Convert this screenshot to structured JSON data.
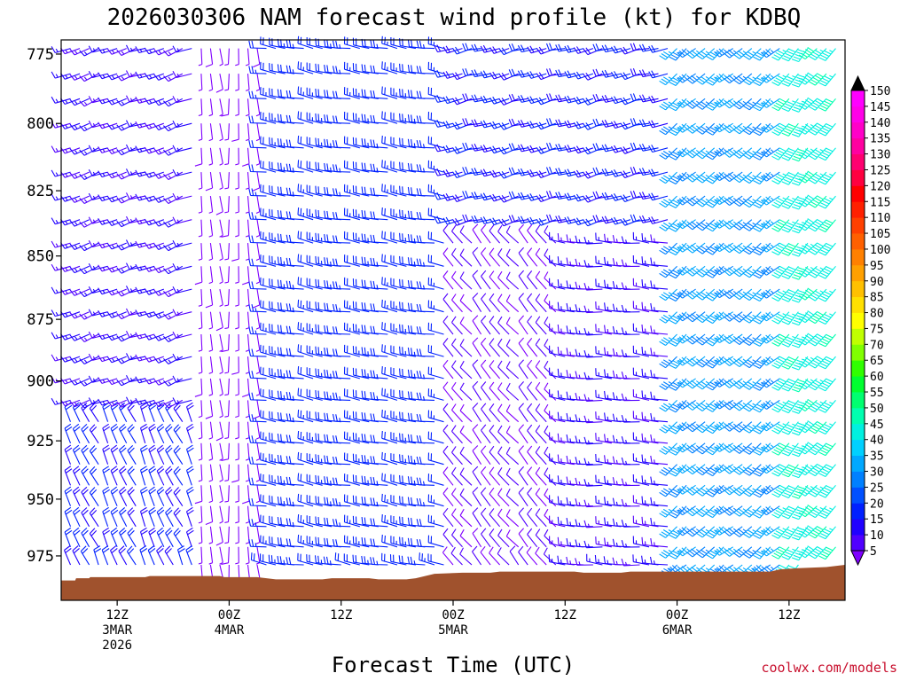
{
  "chart_data": {
    "type": "wind-barb-time-height",
    "title": "2026030306 NAM forecast wind profile (kt) for KDBQ",
    "xlabel": "Forecast Time (UTC)",
    "ylabel": "",
    "credit": "coolwx.com/models",
    "y_axis": {
      "scale": "log-pressure",
      "inverted": true,
      "range_hPa": [
        770,
        995
      ],
      "ticks": [
        775,
        800,
        825,
        850,
        875,
        900,
        925,
        950,
        975
      ]
    },
    "x_axis": {
      "range_hours": [
        0,
        84
      ],
      "ticks": [
        {
          "hour": 6,
          "lines": [
            "12Z",
            "3MAR",
            "2026"
          ]
        },
        {
          "hour": 18,
          "lines": [
            "00Z",
            "4MAR"
          ]
        },
        {
          "hour": 30,
          "lines": [
            "12Z"
          ]
        },
        {
          "hour": 42,
          "lines": [
            "00Z",
            "5MAR"
          ]
        },
        {
          "hour": 54,
          "lines": [
            "12Z"
          ]
        },
        {
          "hour": 66,
          "lines": [
            "00Z",
            "6MAR"
          ]
        },
        {
          "hour": 78,
          "lines": [
            "12Z"
          ]
        }
      ]
    },
    "colorbar": {
      "units": "kt",
      "levels": [
        5,
        10,
        15,
        20,
        25,
        30,
        35,
        40,
        45,
        50,
        55,
        60,
        65,
        70,
        75,
        80,
        85,
        90,
        95,
        100,
        105,
        110,
        115,
        120,
        125,
        130,
        135,
        140,
        145,
        150
      ],
      "colors": [
        "#7f00ff",
        "#5000ff",
        "#2000ff",
        "#0020ff",
        "#0050ff",
        "#0080ff",
        "#00a8ff",
        "#00d0ff",
        "#00f0e0",
        "#00ffb0",
        "#00ff70",
        "#00ff30",
        "#30ff00",
        "#80ff00",
        "#c0ff00",
        "#ffff00",
        "#ffe000",
        "#ffc000",
        "#ffa000",
        "#ff8000",
        "#ff6000",
        "#ff4000",
        "#ff2000",
        "#ff0000",
        "#ff0040",
        "#ff0070",
        "#ff00a0",
        "#ff00c8",
        "#ff00e8",
        "#ff00ff"
      ]
    },
    "terrain": {
      "color": "#a0522d",
      "surface_pressure_hPa": [
        [
          0,
          986
        ],
        [
          1.5,
          986
        ],
        [
          1.6,
          985
        ],
        [
          3,
          985
        ],
        [
          3.1,
          984.5
        ],
        [
          9,
          984.5
        ],
        [
          9.5,
          984
        ],
        [
          17,
          984
        ],
        [
          17.5,
          984.5
        ],
        [
          21,
          984.5
        ],
        [
          22,
          985
        ],
        [
          23,
          985.5
        ],
        [
          28,
          985.5
        ],
        [
          29,
          985
        ],
        [
          33,
          985
        ],
        [
          34,
          985.5
        ],
        [
          37,
          985.5
        ],
        [
          38,
          985
        ],
        [
          39,
          984
        ],
        [
          40,
          983
        ],
        [
          43,
          982.5
        ],
        [
          46,
          982.5
        ],
        [
          47,
          982
        ],
        [
          55,
          982
        ],
        [
          56,
          982.5
        ],
        [
          60,
          982.5
        ],
        [
          61,
          982
        ],
        [
          76,
          982
        ],
        [
          77,
          981
        ],
        [
          79,
          980.5
        ],
        [
          82,
          980
        ],
        [
          84,
          979
        ]
      ]
    },
    "wind_field": {
      "description": "Barbs plotted hourly at 25 pressure levels; direction in degrees (from), speed in kt.",
      "barb_hours_every": 1,
      "barb_pressure_levels": [
        773,
        782,
        791,
        800,
        809,
        818,
        827,
        836,
        845,
        854,
        863,
        872,
        881,
        890,
        899,
        908,
        917,
        926,
        935,
        944,
        953,
        962,
        971,
        979,
        986
      ],
      "regimes": [
        {
          "hours": [
            0,
            15
          ],
          "p_top": 770,
          "p_bottom": 915,
          "dir_deg": 250,
          "speed_kt": 15
        },
        {
          "hours": [
            0,
            15
          ],
          "p_top": 915,
          "p_bottom": 986,
          "dir_deg": 335,
          "speed_kt": 20
        },
        {
          "hours": [
            15,
            22
          ],
          "p_top": 770,
          "p_bottom": 986,
          "dir_deg": 175,
          "speed_kt": 6
        },
        {
          "hours": [
            22,
            42
          ],
          "p_top": 770,
          "p_bottom": 986,
          "dir_deg": 280,
          "speed_kt": 22
        },
        {
          "hours": [
            42,
            66
          ],
          "p_top": 770,
          "p_bottom": 840,
          "dir_deg": 255,
          "speed_kt": 20
        },
        {
          "hours": [
            42,
            54
          ],
          "p_top": 840,
          "p_bottom": 986,
          "dir_deg": 320,
          "speed_kt": 10
        },
        {
          "hours": [
            54,
            66
          ],
          "p_top": 840,
          "p_bottom": 986,
          "dir_deg": 275,
          "speed_kt": 15
        },
        {
          "hours": [
            66,
            84
          ],
          "p_top": 770,
          "p_bottom": 986,
          "dir_deg": 230,
          "speed_kt": 35
        },
        {
          "hours": [
            78,
            84
          ],
          "p_top": 770,
          "p_bottom": 986,
          "dir_deg": 220,
          "speed_kt": 48
        }
      ]
    }
  }
}
